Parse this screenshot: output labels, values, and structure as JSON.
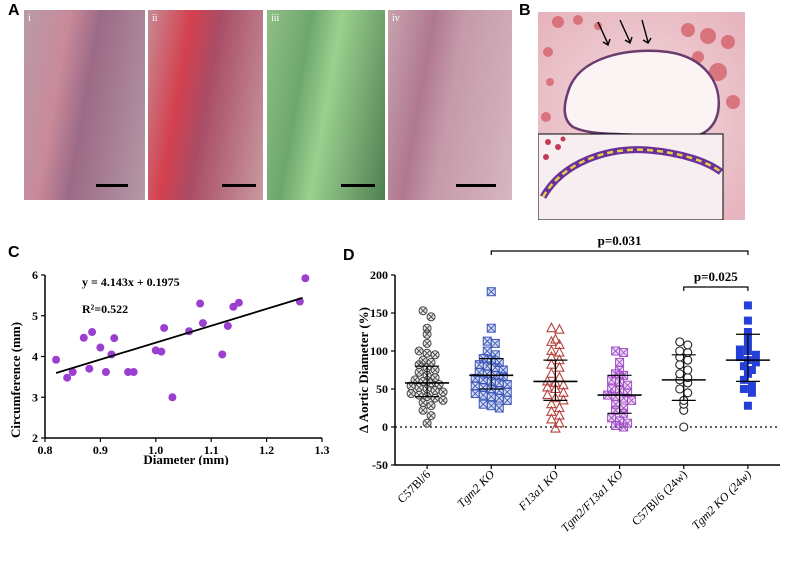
{
  "panels": {
    "A": {
      "letter": "A",
      "photos": [
        {
          "label": "i",
          "colors": [
            "#b89aa8",
            "#c98a9a",
            "#9c6a86",
            "#b598a6"
          ]
        },
        {
          "label": "ii",
          "colors": [
            "#c68b94",
            "#d4404e",
            "#a94d66",
            "#c99aa0"
          ]
        },
        {
          "label": "iii",
          "colors": [
            "#8fbf86",
            "#6ea76e",
            "#9bd08e",
            "#4f7f52"
          ]
        },
        {
          "label": "iv",
          "colors": [
            "#c7a3ae",
            "#b07890",
            "#c59aaa",
            "#d7b6bf"
          ]
        }
      ]
    },
    "B": {
      "letter": "B"
    },
    "C": {
      "letter": "C"
    },
    "D": {
      "letter": "D"
    }
  },
  "chart_data": [
    {
      "panel": "C",
      "type": "scatter",
      "xlabel": "Diameter (mm)",
      "ylabel": "Circumference (mm)",
      "xlim": [
        0.8,
        1.3
      ],
      "ylim": [
        2,
        6
      ],
      "xticks": [
        "0.8",
        "0.9",
        "1.0",
        "1.1",
        "1.2",
        "1.3"
      ],
      "yticks": [
        "2",
        "3",
        "4",
        "5",
        "6"
      ],
      "equation": "y = 4.143x + 0.1975",
      "r2": "R²=0.522",
      "fit": {
        "slope": 4.143,
        "intercept": 0.1975,
        "x_range": [
          0.82,
          1.265
        ]
      },
      "color": "#9b3fd0",
      "points": [
        [
          0.82,
          3.92
        ],
        [
          0.84,
          3.48
        ],
        [
          0.85,
          3.62
        ],
        [
          0.87,
          4.46
        ],
        [
          0.88,
          3.7
        ],
        [
          0.885,
          4.6
        ],
        [
          0.9,
          4.22
        ],
        [
          0.91,
          3.62
        ],
        [
          0.92,
          4.05
        ],
        [
          0.925,
          4.45
        ],
        [
          0.95,
          3.62
        ],
        [
          0.96,
          3.62
        ],
        [
          1.0,
          4.15
        ],
        [
          1.01,
          4.12
        ],
        [
          1.015,
          4.7
        ],
        [
          1.03,
          3.0
        ],
        [
          1.06,
          4.62
        ],
        [
          1.08,
          5.3
        ],
        [
          1.085,
          4.82
        ],
        [
          1.12,
          4.05
        ],
        [
          1.13,
          4.75
        ],
        [
          1.14,
          5.22
        ],
        [
          1.15,
          5.32
        ],
        [
          1.26,
          5.35
        ],
        [
          1.27,
          5.92
        ]
      ]
    },
    {
      "panel": "D",
      "type": "scatter",
      "ylabel": "Δ Aortic Diameter (%)",
      "ylim": [
        -50,
        200
      ],
      "yticks": [
        "-50",
        "0",
        "50",
        "100",
        "150",
        "200"
      ],
      "categories": [
        "C57Bl/6",
        "Tgm2 KO",
        "F13a1 KO",
        "Tgm2/F13a1 KO",
        "C57Bl/6 (24w)",
        "Tgm2 KO (24w)"
      ],
      "comparisons": [
        {
          "from": 1,
          "to": 5,
          "label": "p=0.031"
        },
        {
          "from": 4,
          "to": 5,
          "label": "p=0.025"
        }
      ],
      "series": [
        {
          "name": "C57Bl/6",
          "marker": "circle-x",
          "color": "#444444",
          "mean": 58,
          "sd_low": 40,
          "sd_high": 80,
          "values": [
            153,
            145,
            130,
            122,
            110,
            100,
            97,
            95,
            88,
            85,
            82,
            78,
            75,
            72,
            68,
            65,
            62,
            60,
            58,
            56,
            54,
            52,
            50,
            48,
            46,
            44,
            42,
            40,
            38,
            35,
            32,
            28,
            22,
            15,
            5
          ]
        },
        {
          "name": "Tgm2 KO",
          "marker": "square-x",
          "color": "#3a55b8",
          "mean": 68,
          "sd_low": 50,
          "sd_high": 90,
          "values": [
            178,
            130,
            113,
            110,
            100,
            95,
            90,
            88,
            85,
            82,
            80,
            78,
            75,
            72,
            70,
            68,
            66,
            64,
            62,
            60,
            58,
            56,
            54,
            52,
            50,
            48,
            46,
            44,
            42,
            40,
            38,
            35,
            30,
            28,
            25
          ]
        },
        {
          "name": "F13a1 KO",
          "marker": "triangle",
          "color": "#b5433e",
          "mean": 60,
          "sd_low": 35,
          "sd_high": 88,
          "values": [
            130,
            128,
            115,
            112,
            108,
            100,
            98,
            92,
            88,
            82,
            78,
            70,
            65,
            60,
            58,
            55,
            52,
            50,
            45,
            42,
            38,
            35,
            30,
            25,
            20,
            15,
            10,
            5,
            -2
          ]
        },
        {
          "name": "Tgm2/F13a1 KO",
          "marker": "square-x",
          "color": "#a24fc7",
          "mean": 42,
          "sd_low": 18,
          "sd_high": 68,
          "values": [
            100,
            98,
            85,
            75,
            70,
            68,
            62,
            60,
            55,
            50,
            48,
            45,
            42,
            40,
            38,
            35,
            30,
            25,
            22,
            18,
            12,
            8,
            5,
            2,
            0
          ]
        },
        {
          "name": "C57Bl/6 (24w)",
          "marker": "open-circle",
          "color": "#222222",
          "mean": 62,
          "sd_low": 35,
          "sd_high": 95,
          "values": [
            112,
            108,
            100,
            98,
            92,
            88,
            82,
            75,
            70,
            65,
            62,
            58,
            50,
            45,
            35,
            30,
            22,
            0
          ]
        },
        {
          "name": "Tgm2 KO (24w)",
          "marker": "filled-square",
          "color": "#2540d8",
          "mean": 88,
          "sd_low": 60,
          "sd_high": 122,
          "values": [
            160,
            140,
            125,
            118,
            110,
            102,
            100,
            95,
            92,
            88,
            85,
            80,
            75,
            70,
            62,
            55,
            50,
            45,
            28
          ]
        }
      ]
    }
  ]
}
